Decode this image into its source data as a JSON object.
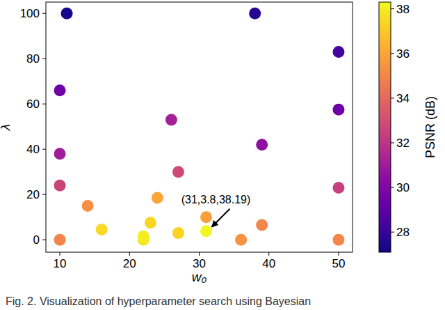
{
  "chart_data": {
    "type": "scatter",
    "x_label": "w₀",
    "y_label": "λ",
    "caption": "Fig. 2. Visualization of hyperparameter search using Bayesian",
    "x": [
      11,
      38,
      50,
      10,
      10,
      10,
      10,
      14,
      16,
      22,
      22,
      23,
      24,
      26,
      27,
      27,
      31,
      31,
      36,
      39,
      39,
      50,
      50,
      50
    ],
    "values": [
      100,
      100,
      83,
      66,
      38,
      24,
      0,
      15,
      4.5,
      0,
      1.5,
      7.5,
      18.5,
      53,
      30,
      3,
      10,
      3.8,
      0,
      42,
      6.5,
      57.5,
      23,
      0
    ],
    "psnr": [
      27.3,
      27.6,
      28.3,
      29.5,
      31.0,
      32.6,
      35.0,
      35.3,
      37.5,
      37.8,
      38.0,
      37.4,
      36.0,
      31.2,
      32.8,
      37.3,
      35.8,
      38.19,
      35.4,
      30.5,
      35.0,
      29.4,
      32.5,
      35.0
    ],
    "xlim": [
      8,
      52
    ],
    "ylim": [
      -5.5,
      105
    ],
    "xticks": [
      10,
      20,
      30,
      40,
      50
    ],
    "yticks": [
      0,
      20,
      40,
      60,
      80,
      100
    ],
    "grid": false,
    "colorbar": {
      "label": "PSNR (dB)",
      "lim": [
        27.1,
        38.3
      ],
      "ticks": [
        28,
        30,
        32,
        34,
        36,
        38
      ]
    },
    "annotation": {
      "text": "(31,3.8,38.19)",
      "x": 31,
      "y": 3.8
    }
  }
}
